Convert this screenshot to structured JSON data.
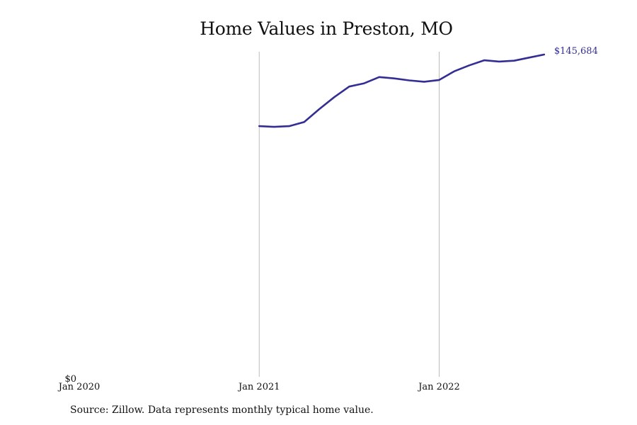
{
  "chart_data": {
    "type": "line",
    "title": "Home Values in Preston, MO",
    "xlabel": "",
    "ylabel": "",
    "x_ticks": [
      "Jan 2020",
      "Jan 2021",
      "Jan 2022"
    ],
    "x_range": [
      "2020-01",
      "2022-09"
    ],
    "y_ticks": [
      "$0"
    ],
    "ylim": [
      0,
      145684
    ],
    "end_label": "$145,684",
    "grid": "vertical",
    "colors": {
      "line": "#332E93",
      "gridline": "#bbbbbb",
      "text": "#111111"
    },
    "series": [
      {
        "x": [
          "2021-01",
          "2021-02",
          "2021-03",
          "2021-04",
          "2021-05",
          "2021-06",
          "2021-07",
          "2021-08",
          "2021-09",
          "2021-10",
          "2021-11",
          "2021-12",
          "2022-01",
          "2022-02",
          "2022-03",
          "2022-04",
          "2022-05",
          "2022-06",
          "2022-07",
          "2022-08"
        ],
        "values": [
          113300,
          113000,
          113300,
          115200,
          121000,
          126400,
          131200,
          132700,
          135500,
          134900,
          134000,
          133400,
          134200,
          138100,
          140800,
          143100,
          142500,
          142900,
          144300,
          145684
        ]
      }
    ]
  },
  "source": "Source: Zillow. Data represents monthly typical home value."
}
